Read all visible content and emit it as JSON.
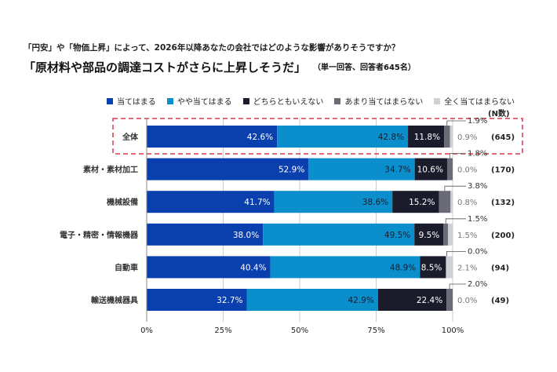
{
  "question": "「円安」や「物価上昇」によって、2026年以降あなたの会社ではどのような影響がありそうですか？",
  "title": "「原材料や部品の調達コストがさらに上昇しそうだ」",
  "subtitle": "（単一回答、回答者645名）",
  "n_label": "(N数)",
  "colors": {
    "s1": "#0a3fae",
    "s2": "#0a8fcc",
    "s3": "#1b1c2b",
    "s4": "#6b6b78",
    "s5": "#cfd0d4",
    "highlight": "#d6394f",
    "grid": "#cccccc"
  },
  "chart_data": {
    "type": "bar",
    "orientation": "horizontal-stacked-100",
    "categories": [
      "全体",
      "素材・素材加工",
      "機械設備",
      "電子・精密・情報機器",
      "自動車",
      "輸送機械器具"
    ],
    "n": [
      "(645)",
      "(170)",
      "(132)",
      "(200)",
      "(94)",
      "(49)"
    ],
    "series": [
      {
        "name": "当てはまる",
        "values": [
          42.6,
          52.9,
          41.7,
          38.0,
          40.4,
          32.7
        ]
      },
      {
        "name": "やや当てはまる",
        "values": [
          42.8,
          34.7,
          38.6,
          49.5,
          48.9,
          42.9
        ]
      },
      {
        "name": "どちらともいえない",
        "values": [
          11.8,
          10.6,
          15.2,
          9.5,
          8.5,
          22.4
        ]
      },
      {
        "name": "あまり当てはまらない",
        "values": [
          1.9,
          1.8,
          3.8,
          1.5,
          0.0,
          2.0
        ]
      },
      {
        "name": "全く当てはまらない",
        "values": [
          0.9,
          0.0,
          0.8,
          1.5,
          2.1,
          0.0
        ]
      }
    ],
    "xticks": [
      "0%",
      "25%",
      "50%",
      "75%",
      "100%"
    ],
    "xlim": [
      0,
      100
    ],
    "highlighted_category": "全体",
    "legend_position": "top",
    "grid": true
  }
}
